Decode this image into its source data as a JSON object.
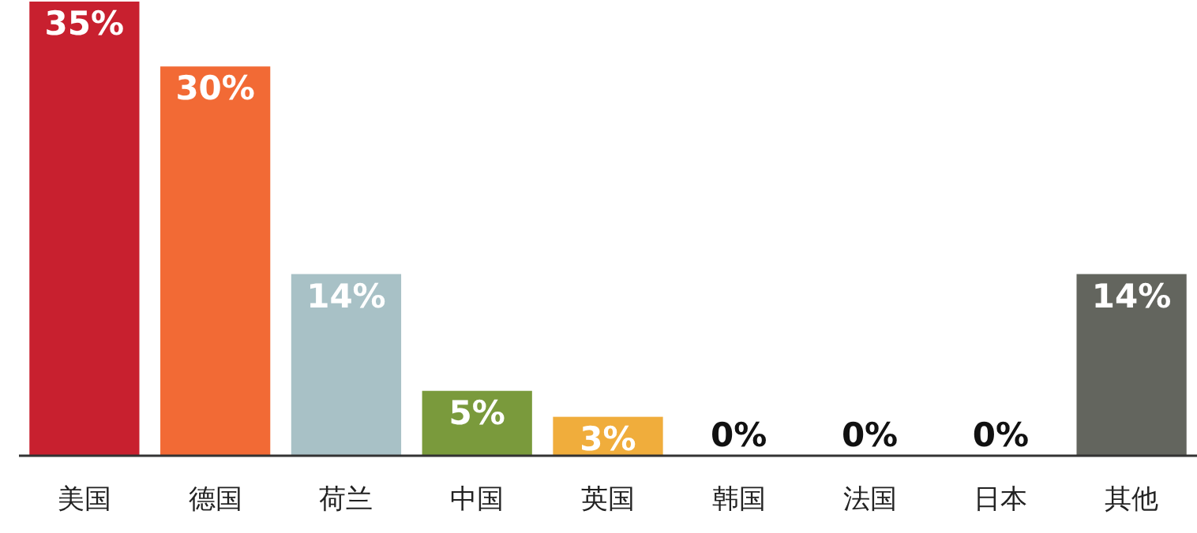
{
  "chart_data": {
    "type": "bar",
    "categories": [
      "美国",
      "德国",
      "荷兰",
      "中国",
      "英国",
      "韩国",
      "法国",
      "日本",
      "其他"
    ],
    "values": [
      35,
      30,
      14,
      5,
      3,
      0,
      0,
      0,
      14
    ],
    "value_labels": [
      "35%",
      "30%",
      "14%",
      "5%",
      "3%",
      "0%",
      "0%",
      "0%",
      "14%"
    ],
    "colors": [
      "#c8202f",
      "#f26a35",
      "#a8c1c6",
      "#7a9a3c",
      "#f0ad3c",
      "#f0ad3c",
      "#f0ad3c",
      "#f0ad3c",
      "#63655e"
    ]
  }
}
